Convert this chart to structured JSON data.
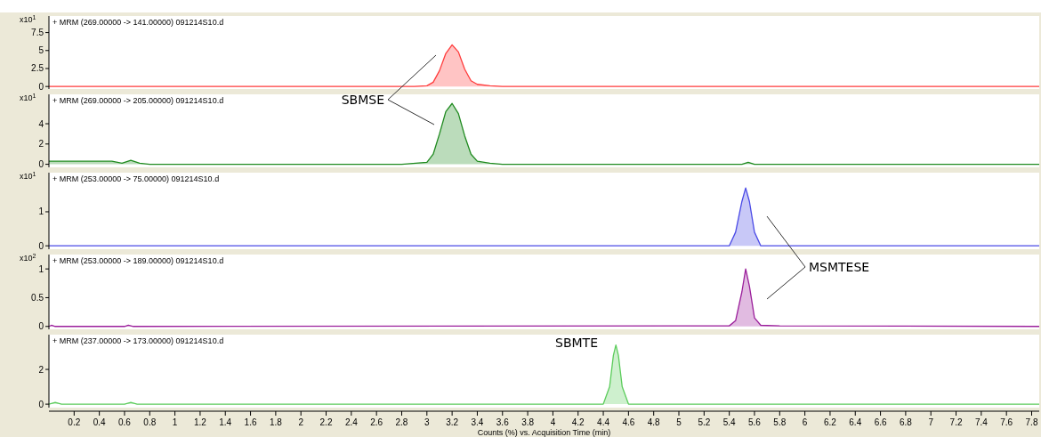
{
  "chart_data": [
    {
      "type": "area",
      "title": "+ MRM (269.00000 -> 141.00000) 091214S10.d",
      "ylabel": "x10$^{1}$",
      "xlim": [
        0,
        7.86
      ],
      "ylim": [
        -0.35,
        9.8
      ],
      "yticks": [
        0,
        2.5,
        5,
        7.5
      ],
      "tick_labels": "y",
      "grid": false,
      "series": [
        {
          "color": "#ff3b3b",
          "x": [
            0,
            1,
            2,
            2.9,
            3.0,
            3.05,
            3.1,
            3.15,
            3.2,
            3.25,
            3.3,
            3.35,
            3.4,
            3.5,
            3.6,
            4,
            5,
            6,
            7,
            7.86
          ],
          "values": [
            0,
            0,
            0,
            0,
            0.1,
            0.6,
            2.2,
            4.6,
            5.8,
            4.8,
            2.4,
            0.8,
            0.3,
            0.1,
            0,
            0,
            0,
            0,
            0,
            0
          ]
        }
      ]
    },
    {
      "type": "area",
      "title": "+ MRM (269.00000 -> 205.00000) 091214S10.d",
      "ylabel": "x10$^{1}$",
      "xlim": [
        0,
        7.86
      ],
      "ylim": [
        -0.3,
        6.9
      ],
      "yticks": [
        0,
        2,
        4
      ],
      "tick_labels": "y",
      "grid": false,
      "annotations": [
        "SBMSE"
      ],
      "series": [
        {
          "color": "#1f8a1f",
          "x": [
            0,
            0.5,
            0.58,
            0.65,
            0.72,
            0.8,
            1.4,
            2.8,
            3.0,
            3.05,
            3.1,
            3.15,
            3.2,
            3.25,
            3.3,
            3.35,
            3.4,
            3.5,
            3.6,
            4,
            5.5,
            5.55,
            5.6,
            6,
            7.86
          ],
          "values": [
            0.3,
            0.3,
            0.1,
            0.4,
            0.1,
            0,
            0,
            0,
            0.2,
            1,
            3,
            5.2,
            6,
            5,
            2.8,
            1,
            0.3,
            0.1,
            0,
            0,
            0,
            0.2,
            0,
            0,
            0
          ]
        }
      ]
    },
    {
      "type": "area",
      "title": "+ MRM (253.00000 -> 75.00000) 091214S10.d",
      "ylabel": "x10$^{1}$",
      "xlim": [
        0,
        7.86
      ],
      "ylim": [
        -0.1,
        2.15
      ],
      "yticks": [
        0,
        1
      ],
      "tick_labels": "y",
      "grid": false,
      "annotations": [
        "MSMTESE"
      ],
      "series": [
        {
          "color": "#4a4ae6",
          "x": [
            0,
            5,
            5.4,
            5.45,
            5.5,
            5.53,
            5.56,
            5.6,
            5.65,
            5.7,
            7.86
          ],
          "values": [
            0,
            0,
            0,
            0.4,
            1.3,
            1.7,
            1.3,
            0.4,
            0,
            0,
            0
          ]
        }
      ]
    },
    {
      "type": "area",
      "title": "+ MRM (253.00000 -> 189.00000) 091214S10.d",
      "ylabel": "x10$^{2}$",
      "xlim": [
        0,
        7.86
      ],
      "ylim": [
        -0.05,
        1.25
      ],
      "yticks": [
        0,
        0.5,
        1
      ],
      "tick_labels": "y",
      "grid": false,
      "series": [
        {
          "color": "#9b1f9b",
          "x": [
            0,
            0.02,
            0.05,
            0.6,
            0.63,
            0.67,
            5.2,
            5.4,
            5.45,
            5.5,
            5.53,
            5.56,
            5.6,
            5.65,
            5.8,
            7.86
          ],
          "values": [
            0,
            0.02,
            0,
            0,
            0.02,
            0,
            0.01,
            0.01,
            0.1,
            0.6,
            1.0,
            0.7,
            0.15,
            0.02,
            0.01,
            0
          ]
        }
      ]
    },
    {
      "type": "area",
      "title": "+ MRM (237.00000 -> 173.00000) 091214S10.d",
      "xlabel": "Counts (%) vs. Acquisition Time (min)",
      "xlim": [
        0,
        7.86
      ],
      "ylim": [
        -0.2,
        4.0
      ],
      "yticks": [
        0,
        2
      ],
      "grid": false,
      "annotations": [
        "SBMTE"
      ],
      "xticks": [
        0.2,
        0.4,
        0.6,
        0.8,
        1,
        1.2,
        1.4,
        1.6,
        1.8,
        2,
        2.2,
        2.4,
        2.6,
        2.8,
        3,
        3.2,
        3.4,
        3.6,
        3.8,
        4,
        4.2,
        4.4,
        4.6,
        4.8,
        5,
        5.2,
        5.4,
        5.6,
        5.8,
        6,
        6.2,
        6.4,
        6.6,
        6.8,
        7,
        7.2,
        7.4,
        7.6,
        7.8
      ],
      "series": [
        {
          "color": "#5ccc5c",
          "x": [
            0,
            0.05,
            0.1,
            0.6,
            0.65,
            0.7,
            1.4,
            2.1,
            2.8,
            3.0,
            4.4,
            4.45,
            4.48,
            4.5,
            4.52,
            4.55,
            4.6,
            5.2,
            6.4,
            7.86
          ],
          "values": [
            0,
            0.1,
            0,
            0,
            0.1,
            0,
            0,
            0,
            0,
            0,
            0,
            1,
            2.8,
            3.4,
            2.8,
            1,
            0,
            0,
            0,
            0
          ]
        }
      ]
    }
  ]
}
